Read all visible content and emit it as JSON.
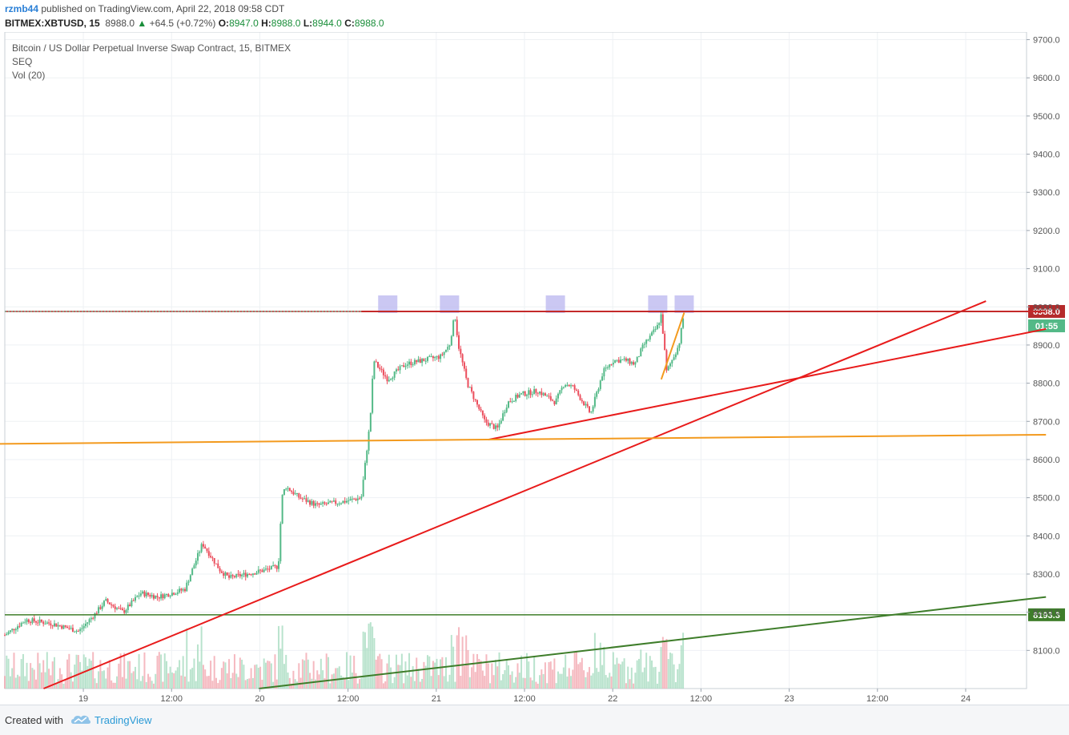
{
  "header": {
    "author": "rzmb44",
    "published_text": "published on TradingView.com, April 22, 2018 09:58 CDT",
    "symbol": "BITMEX:XBTUSD, 15",
    "last": "8988.0",
    "arrow": "▲",
    "change": "+64.5 (+0.72%)",
    "o_label": "O:",
    "o_value": "8947.0",
    "h_label": "H:",
    "h_value": "8988.0",
    "l_label": "L:",
    "l_value": "8944.0",
    "c_label": "C:",
    "c_value": "8988.0"
  },
  "legend": {
    "title": "Bitcoin / US Dollar Perpetual Inverse Swap Contract, 15, BITMEX",
    "line2": "SEQ",
    "line3": "Vol (20)"
  },
  "footer": {
    "created_with": "Created with",
    "brand": "TradingView",
    "logo_icon": "tradingview-cloud-icon"
  },
  "chart_data": {
    "type": "candlestick",
    "title": "Bitcoin / US Dollar Perpetual Inverse Swap Contract, 15, BITMEX",
    "y_axis": {
      "range": [
        8000,
        9720
      ],
      "side": "right",
      "ticks": [
        "9700.0",
        "9600.0",
        "9500.0",
        "9400.0",
        "9300.0",
        "9200.0",
        "9100.0",
        "9000.0",
        "8900.0",
        "8800.0",
        "8700.0",
        "8600.0",
        "8500.0",
        "8400.0",
        "8300.0",
        "8200.0",
        "8100.0"
      ]
    },
    "x_axis": {
      "range_days": [
        18.43,
        24.22
      ],
      "ticks": [
        {
          "label": "19",
          "day": 18.875
        },
        {
          "label": "12:00",
          "day": 19.375
        },
        {
          "label": "20",
          "day": 19.875
        },
        {
          "label": "12:00",
          "day": 20.375
        },
        {
          "label": "21",
          "day": 20.875
        },
        {
          "label": "12:00",
          "day": 21.375
        },
        {
          "label": "22",
          "day": 21.875
        },
        {
          "label": "12:00",
          "day": 22.375
        },
        {
          "label": "23",
          "day": 22.875
        },
        {
          "label": "12:00",
          "day": 23.375
        },
        {
          "label": "24",
          "day": 23.875
        },
        {
          "label": "12:00",
          "day": 24.375
        }
      ]
    },
    "grid": true,
    "price_path_day": [
      18.43,
      18.55,
      18.7,
      18.85,
      18.95,
      19.0,
      19.1,
      19.2,
      19.3,
      19.45,
      19.55,
      19.65,
      19.7,
      19.8,
      19.9,
      19.98,
      20.0,
      20.02,
      20.1,
      20.2,
      20.35,
      20.45,
      20.5,
      20.52,
      20.55,
      20.6,
      20.7,
      20.8,
      20.9,
      20.95,
      20.98,
      21.0,
      21.05,
      21.15,
      21.22,
      21.28,
      21.35,
      21.45,
      21.55,
      21.6,
      21.65,
      21.75,
      21.82,
      21.88,
      21.95,
      22.0,
      22.05,
      22.1,
      22.13,
      22.15,
      22.18,
      22.25,
      22.28
    ],
    "price_path_close": [
      8140,
      8180,
      8170,
      8150,
      8200,
      8230,
      8200,
      8250,
      8240,
      8260,
      8380,
      8310,
      8290,
      8300,
      8310,
      8320,
      8500,
      8530,
      8500,
      8480,
      8490,
      8500,
      8700,
      8860,
      8840,
      8810,
      8850,
      8860,
      8870,
      8900,
      8980,
      8900,
      8800,
      8700,
      8680,
      8750,
      8770,
      8780,
      8750,
      8800,
      8790,
      8720,
      8830,
      8860,
      8860,
      8850,
      8900,
      8930,
      8950,
      8980,
      8830,
      8900,
      8988
    ],
    "volume_baseline_price": 8000,
    "horizontal_lines": [
      {
        "label": "8988.0",
        "price": 8988,
        "color": "#b52b2b"
      },
      {
        "label": "8193.3",
        "price": 8193.3,
        "color": "#3e7d2a"
      }
    ],
    "countdown_label": "01:55",
    "trend_lines": [
      {
        "color": "#e81b1b",
        "from": [
          18.65,
          8000
        ],
        "to": [
          23.99,
          9015
        ]
      },
      {
        "color": "#e81b1b",
        "from": [
          21.17,
          8652
        ],
        "to": [
          24.33,
          8942
        ]
      },
      {
        "color": "#f39a1e",
        "from": [
          18.12,
          8640
        ],
        "to": [
          24.33,
          8665
        ]
      },
      {
        "color": "#f39a1e",
        "from": [
          22.15,
          8810
        ],
        "to": [
          22.28,
          8985
        ]
      },
      {
        "color": "#3e7d2a",
        "from": [
          19.87,
          8000
        ],
        "to": [
          24.33,
          8240
        ]
      },
      {
        "color": "#c42a2a",
        "from": [
          20.45,
          8988
        ],
        "to": [
          24.33,
          8988
        ]
      }
    ],
    "highlight_boxes_day": [
      20.6,
      20.95,
      21.55,
      22.13,
      22.28
    ]
  }
}
